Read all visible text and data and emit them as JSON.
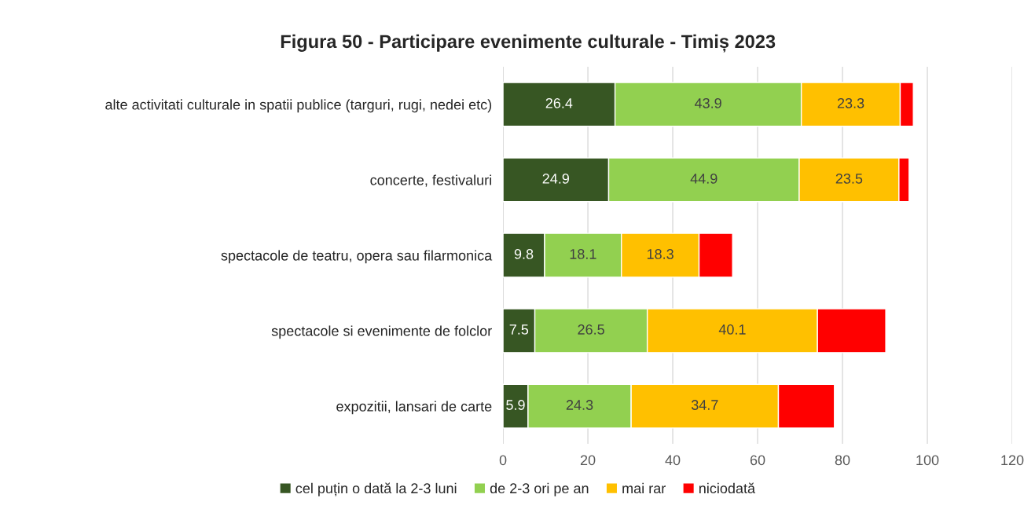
{
  "chart_data": {
    "type": "bar",
    "orientation": "horizontal",
    "stacked": true,
    "title": "Figura 50 - Participare evenimente culturale - Timiș 2023",
    "categories": [
      "alte activitati culturale in spatii publice (targuri, rugi, nedei etc)",
      "concerte, festivaluri",
      "spectacole de teatru, opera sau filarmonica",
      "spectacole si evenimente de folclor",
      "expozitii, lansari de carte"
    ],
    "series": [
      {
        "name": "cel puțin o dată la 2-3 luni",
        "color": "#375623",
        "values": [
          26.4,
          24.9,
          9.8,
          7.5,
          5.9
        ],
        "value_labels": [
          "26.4",
          "24.9",
          "9.8",
          "7.5",
          "5.9"
        ]
      },
      {
        "name": "de 2-3 ori pe an",
        "color": "#92d050",
        "values": [
          43.9,
          44.9,
          18.1,
          26.5,
          24.3
        ],
        "value_labels": [
          "43.9",
          "44.9",
          "18.1",
          "26.5",
          "24.3"
        ]
      },
      {
        "name": "mai rar",
        "color": "#ffc000",
        "values": [
          23.3,
          23.5,
          18.3,
          40.1,
          34.7
        ],
        "value_labels": [
          "23.3",
          "23.5",
          "18.3",
          "40.1",
          "34.7"
        ]
      },
      {
        "name": "niciodată",
        "color": "#ff0000",
        "values": [
          3.1,
          2.4,
          7.9,
          16.1,
          13.2
        ],
        "value_labels": [
          null,
          null,
          null,
          null,
          null
        ]
      }
    ],
    "xlim": [
      0,
      120
    ],
    "xticks": [
      0,
      20,
      40,
      60,
      80,
      100,
      120
    ],
    "grid": "x",
    "legend": "bottom"
  }
}
